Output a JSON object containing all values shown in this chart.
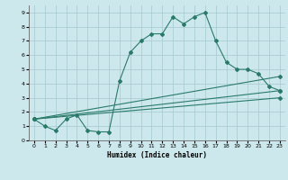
{
  "xlabel": "Humidex (Indice chaleur)",
  "bg_color": "#cce8ec",
  "grid_color": "#aacdd4",
  "line_color": "#2a7a6a",
  "line1_x": [
    0,
    1,
    2,
    3,
    4,
    5,
    6,
    7,
    8,
    9,
    10,
    11,
    12,
    13,
    14,
    15,
    16,
    17,
    18,
    19,
    20,
    21,
    22,
    23
  ],
  "line1_y": [
    1.5,
    1.0,
    0.7,
    1.5,
    1.8,
    0.7,
    0.6,
    0.6,
    4.2,
    6.2,
    7.0,
    7.5,
    7.5,
    8.7,
    8.2,
    8.7,
    9.0,
    7.0,
    5.5,
    5.0,
    5.0,
    4.7,
    3.8,
    3.5
  ],
  "line2_x": [
    0,
    23
  ],
  "line2_y": [
    1.5,
    3.5
  ],
  "line3_x": [
    0,
    23
  ],
  "line3_y": [
    1.5,
    4.5
  ],
  "line4_x": [
    0,
    23
  ],
  "line4_y": [
    1.5,
    3.0
  ],
  "xlim": [
    -0.5,
    23.5
  ],
  "ylim": [
    0,
    9.5
  ],
  "xticks": [
    0,
    1,
    2,
    3,
    4,
    5,
    6,
    7,
    8,
    9,
    10,
    11,
    12,
    13,
    14,
    15,
    16,
    17,
    18,
    19,
    20,
    21,
    22,
    23
  ],
  "yticks": [
    0,
    1,
    2,
    3,
    4,
    5,
    6,
    7,
    8,
    9
  ]
}
